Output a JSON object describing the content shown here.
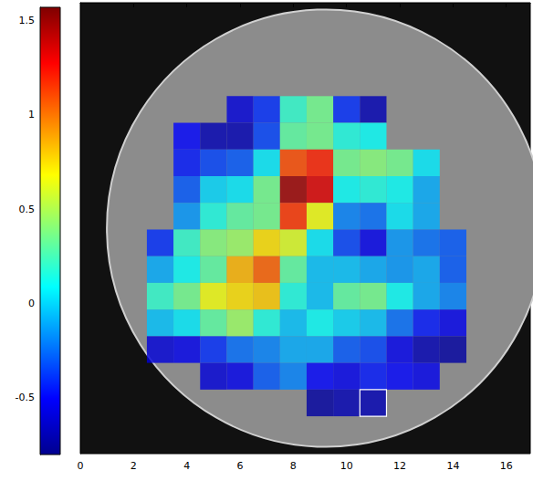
{
  "chart_data": {
    "type": "heatmap",
    "xlim": [
      0,
      16.9
    ],
    "xticks": [
      0,
      2,
      4,
      6,
      8,
      10,
      12,
      14,
      16
    ],
    "ylim": [
      0,
      16.9
    ],
    "tick_labels": "x",
    "grid": false,
    "cells": [
      [
        6,
        4,
        -0.6
      ],
      [
        7,
        4,
        -0.4
      ],
      [
        8,
        4,
        0.2
      ],
      [
        9,
        4,
        0.35
      ],
      [
        10,
        4,
        -0.4
      ],
      [
        11,
        4,
        -0.7
      ],
      [
        4,
        5,
        -0.5
      ],
      [
        5,
        5,
        -0.7
      ],
      [
        6,
        5,
        -0.7
      ],
      [
        7,
        5,
        -0.35
      ],
      [
        8,
        5,
        0.3
      ],
      [
        9,
        5,
        0.35
      ],
      [
        10,
        5,
        0.15
      ],
      [
        11,
        5,
        0.1
      ],
      [
        4,
        6,
        -0.45
      ],
      [
        5,
        6,
        -0.35
      ],
      [
        6,
        6,
        -0.3
      ],
      [
        7,
        6,
        0.05
      ],
      [
        8,
        6,
        1.1
      ],
      [
        9,
        6,
        1.2
      ],
      [
        10,
        6,
        0.35
      ],
      [
        11,
        6,
        0.4
      ],
      [
        12,
        6,
        0.35
      ],
      [
        13,
        6,
        0.05
      ],
      [
        4,
        7,
        -0.3
      ],
      [
        5,
        7,
        0.0
      ],
      [
        6,
        7,
        0.05
      ],
      [
        7,
        7,
        0.35
      ],
      [
        8,
        7,
        1.5
      ],
      [
        9,
        7,
        1.35
      ],
      [
        10,
        7,
        0.1
      ],
      [
        11,
        7,
        0.15
      ],
      [
        12,
        7,
        0.1
      ],
      [
        13,
        7,
        -0.1
      ],
      [
        4,
        8,
        -0.15
      ],
      [
        5,
        8,
        0.15
      ],
      [
        6,
        8,
        0.3
      ],
      [
        7,
        8,
        0.35
      ],
      [
        8,
        8,
        1.15
      ],
      [
        9,
        8,
        0.65
      ],
      [
        10,
        8,
        -0.2
      ],
      [
        11,
        8,
        -0.25
      ],
      [
        12,
        8,
        0.05
      ],
      [
        13,
        8,
        -0.1
      ],
      [
        3,
        9,
        -0.4
      ],
      [
        4,
        9,
        0.2
      ],
      [
        5,
        9,
        0.4
      ],
      [
        6,
        9,
        0.45
      ],
      [
        7,
        9,
        0.75
      ],
      [
        8,
        9,
        0.6
      ],
      [
        9,
        9,
        0.05
      ],
      [
        10,
        9,
        -0.35
      ],
      [
        11,
        9,
        -0.55
      ],
      [
        12,
        9,
        -0.15
      ],
      [
        13,
        9,
        -0.25
      ],
      [
        14,
        9,
        -0.3
      ],
      [
        3,
        10,
        -0.1
      ],
      [
        4,
        10,
        0.1
      ],
      [
        5,
        10,
        0.3
      ],
      [
        6,
        10,
        0.85
      ],
      [
        7,
        10,
        1.05
      ],
      [
        8,
        10,
        0.3
      ],
      [
        9,
        10,
        -0.05
      ],
      [
        10,
        10,
        -0.05
      ],
      [
        11,
        10,
        -0.1
      ],
      [
        12,
        10,
        -0.15
      ],
      [
        13,
        10,
        -0.1
      ],
      [
        14,
        10,
        -0.3
      ],
      [
        3,
        11,
        0.2
      ],
      [
        4,
        11,
        0.35
      ],
      [
        5,
        11,
        0.65
      ],
      [
        6,
        11,
        0.75
      ],
      [
        7,
        11,
        0.8
      ],
      [
        8,
        11,
        0.15
      ],
      [
        9,
        11,
        -0.05
      ],
      [
        10,
        11,
        0.3
      ],
      [
        11,
        11,
        0.35
      ],
      [
        12,
        11,
        0.1
      ],
      [
        13,
        11,
        -0.1
      ],
      [
        14,
        11,
        -0.2
      ],
      [
        3,
        12,
        -0.05
      ],
      [
        4,
        12,
        0.05
      ],
      [
        5,
        12,
        0.3
      ],
      [
        6,
        12,
        0.45
      ],
      [
        7,
        12,
        0.15
      ],
      [
        8,
        12,
        -0.05
      ],
      [
        9,
        12,
        0.1
      ],
      [
        10,
        12,
        0.0
      ],
      [
        11,
        12,
        -0.05
      ],
      [
        12,
        12,
        -0.25
      ],
      [
        13,
        12,
        -0.45
      ],
      [
        14,
        12,
        -0.55
      ],
      [
        3,
        13,
        -0.6
      ],
      [
        4,
        13,
        -0.55
      ],
      [
        5,
        13,
        -0.4
      ],
      [
        6,
        13,
        -0.25
      ],
      [
        7,
        13,
        -0.2
      ],
      [
        8,
        13,
        -0.1
      ],
      [
        9,
        13,
        -0.1
      ],
      [
        10,
        13,
        -0.3
      ],
      [
        11,
        13,
        -0.35
      ],
      [
        12,
        13,
        -0.55
      ],
      [
        13,
        13,
        -0.7
      ],
      [
        14,
        13,
        -0.75
      ],
      [
        5,
        14,
        -0.6
      ],
      [
        6,
        14,
        -0.55
      ],
      [
        7,
        14,
        -0.3
      ],
      [
        8,
        14,
        -0.2
      ],
      [
        9,
        14,
        -0.5
      ],
      [
        10,
        14,
        -0.55
      ],
      [
        11,
        14,
        -0.45
      ],
      [
        12,
        14,
        -0.5
      ],
      [
        13,
        14,
        -0.55
      ],
      [
        9,
        15,
        -0.75
      ],
      [
        10,
        15,
        -0.7
      ],
      [
        11,
        15,
        -0.7
      ]
    ],
    "highlight_cell": [
      11,
      15
    ],
    "colorbar": {
      "range": [
        -0.8,
        1.57
      ],
      "ticks": [
        -0.5,
        0,
        0.5,
        1,
        1.5
      ]
    }
  }
}
